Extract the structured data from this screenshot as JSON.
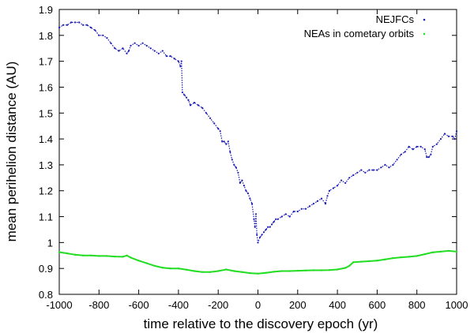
{
  "chart_data": {
    "type": "scatter",
    "title": "",
    "xlabel": "time relative to the discovery epoch (yr)",
    "ylabel": "mean perihelion distance (AU)",
    "xlim": [
      -1000,
      1000
    ],
    "ylim": [
      0.8,
      1.9
    ],
    "xticks": [
      -1000,
      -800,
      -600,
      -400,
      -200,
      0,
      200,
      400,
      600,
      800,
      1000
    ],
    "xtick_labels": [
      "-1000",
      "-800",
      "-600",
      "-400",
      "-200",
      "0",
      "200",
      "400",
      "600",
      "800",
      "1000"
    ],
    "yticks": [
      0.8,
      0.9,
      1.0,
      1.1,
      1.2,
      1.3,
      1.4,
      1.5,
      1.6,
      1.7,
      1.8,
      1.9
    ],
    "ytick_labels": [
      "0.8",
      "0.9",
      "1",
      "1.1",
      "1.2",
      "1.3",
      "1.4",
      "1.5",
      "1.6",
      "1.7",
      "1.8",
      "1.9"
    ],
    "legend": "top-right",
    "series": [
      {
        "name": "NEJFCs",
        "color": "#1a1ab4",
        "x": [
          -1000,
          -980,
          -960,
          -940,
          -920,
          -900,
          -880,
          -860,
          -840,
          -820,
          -800,
          -780,
          -760,
          -740,
          -720,
          -700,
          -680,
          -660,
          -650,
          -640,
          -620,
          -600,
          -580,
          -560,
          -540,
          -520,
          -500,
          -480,
          -460,
          -440,
          -420,
          -400,
          -390,
          -385,
          -380,
          -370,
          -360,
          -350,
          -340,
          -320,
          -300,
          -280,
          -260,
          -240,
          -220,
          -200,
          -190,
          -180,
          -170,
          -160,
          -150,
          -140,
          -130,
          -120,
          -110,
          -100,
          -90,
          -80,
          -70,
          -60,
          -50,
          -40,
          -30,
          -20,
          -15,
          -10,
          -5,
          0,
          10,
          20,
          30,
          40,
          50,
          60,
          70,
          80,
          90,
          100,
          120,
          140,
          160,
          180,
          200,
          220,
          240,
          260,
          280,
          300,
          320,
          340,
          350,
          360,
          380,
          400,
          420,
          440,
          460,
          480,
          500,
          520,
          540,
          560,
          580,
          600,
          620,
          640,
          660,
          680,
          700,
          720,
          740,
          760,
          780,
          800,
          820,
          840,
          850,
          860,
          870,
          880,
          900,
          920,
          940,
          960,
          980,
          990,
          1000
        ],
        "y": [
          1.83,
          1.84,
          1.84,
          1.85,
          1.85,
          1.85,
          1.84,
          1.84,
          1.83,
          1.82,
          1.8,
          1.8,
          1.79,
          1.77,
          1.75,
          1.74,
          1.75,
          1.73,
          1.74,
          1.76,
          1.77,
          1.76,
          1.77,
          1.76,
          1.75,
          1.74,
          1.73,
          1.74,
          1.72,
          1.72,
          1.71,
          1.7,
          1.68,
          1.7,
          1.58,
          1.57,
          1.56,
          1.55,
          1.53,
          1.54,
          1.53,
          1.52,
          1.5,
          1.48,
          1.46,
          1.44,
          1.43,
          1.39,
          1.39,
          1.38,
          1.39,
          1.35,
          1.32,
          1.3,
          1.29,
          1.27,
          1.23,
          1.24,
          1.22,
          1.2,
          1.19,
          1.17,
          1.15,
          1.09,
          1.06,
          1.11,
          1.03,
          1.0,
          1.02,
          1.03,
          1.04,
          1.05,
          1.06,
          1.06,
          1.07,
          1.08,
          1.09,
          1.09,
          1.1,
          1.11,
          1.1,
          1.12,
          1.12,
          1.13,
          1.13,
          1.14,
          1.15,
          1.16,
          1.17,
          1.15,
          1.18,
          1.2,
          1.21,
          1.22,
          1.24,
          1.23,
          1.25,
          1.26,
          1.27,
          1.28,
          1.27,
          1.28,
          1.28,
          1.28,
          1.29,
          1.3,
          1.29,
          1.3,
          1.32,
          1.34,
          1.35,
          1.37,
          1.36,
          1.37,
          1.37,
          1.36,
          1.33,
          1.33,
          1.34,
          1.37,
          1.38,
          1.4,
          1.42,
          1.41,
          1.41,
          1.4,
          1.43
        ]
      },
      {
        "name": "NEAs in cometary orbits",
        "color": "#22dd22",
        "x": [
          -1000,
          -960,
          -920,
          -880,
          -840,
          -800,
          -760,
          -720,
          -680,
          -660,
          -640,
          -600,
          -560,
          -520,
          -480,
          -440,
          -400,
          -360,
          -320,
          -280,
          -240,
          -200,
          -160,
          -120,
          -80,
          -40,
          0,
          40,
          80,
          120,
          160,
          200,
          240,
          280,
          320,
          360,
          400,
          440,
          460,
          480,
          520,
          560,
          600,
          640,
          680,
          720,
          760,
          800,
          840,
          880,
          920,
          960,
          1000
        ],
        "y": [
          0.963,
          0.958,
          0.953,
          0.95,
          0.95,
          0.948,
          0.948,
          0.946,
          0.945,
          0.95,
          0.942,
          0.93,
          0.92,
          0.91,
          0.903,
          0.9,
          0.9,
          0.895,
          0.89,
          0.886,
          0.886,
          0.89,
          0.896,
          0.89,
          0.886,
          0.882,
          0.88,
          0.883,
          0.887,
          0.89,
          0.89,
          0.891,
          0.892,
          0.893,
          0.893,
          0.894,
          0.896,
          0.902,
          0.91,
          0.924,
          0.926,
          0.928,
          0.93,
          0.935,
          0.94,
          0.943,
          0.945,
          0.948,
          0.955,
          0.962,
          0.965,
          0.968,
          0.965
        ]
      }
    ]
  }
}
